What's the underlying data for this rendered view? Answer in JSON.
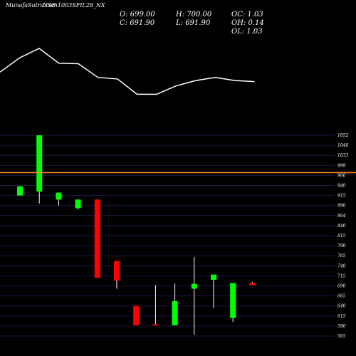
{
  "header": {
    "title": "MunafaSutra.com",
    "symbol": "NSE 1003SFIL28_NX"
  },
  "ohlc": {
    "open": "O: 699.00",
    "high": "H: 700.00",
    "close": "C: 691.90",
    "low": "L: 691.90",
    "oc": "OC: 1.03",
    "oh": "OH: 0.14",
    "ol": "OL: 1.03"
  },
  "colors": {
    "background": "#000000",
    "bullish": "#00ff00",
    "bearish": "#ff0000",
    "grid": "#1a1a44",
    "reference_line": "#ff8c1a",
    "volume_line": "#ffffff"
  },
  "chart_data": {
    "type": "candlestick",
    "y_ticks": [
      1052,
      1046,
      1033,
      999,
      966,
      940,
      915,
      890,
      864,
      840,
      815,
      790,
      765,
      740,
      715,
      690,
      665,
      640,
      615,
      590,
      565
    ],
    "ylim": [
      565,
      1052
    ],
    "reference_value": 966,
    "candles": [
      {
        "open": 915,
        "close": 938,
        "high": 938,
        "low": 915
      },
      {
        "open": 925,
        "close": 1052,
        "high": 1052,
        "low": 895
      },
      {
        "open": 905,
        "close": 922,
        "high": 922,
        "low": 890
      },
      {
        "open": 883,
        "close": 905,
        "high": 905,
        "low": 880
      },
      {
        "open": 905,
        "close": 710,
        "high": 905,
        "low": 710
      },
      {
        "open": 752,
        "close": 703,
        "high": 752,
        "low": 683
      },
      {
        "open": 640,
        "close": 592,
        "high": 640,
        "low": 592
      },
      {
        "open": 595,
        "close": 592,
        "high": 692,
        "low": 592
      },
      {
        "open": 592,
        "close": 652,
        "high": 696,
        "low": 592
      },
      {
        "open": 683,
        "close": 695,
        "high": 762,
        "low": 568
      },
      {
        "open": 705,
        "close": 718,
        "high": 718,
        "low": 635
      },
      {
        "open": 610,
        "close": 697,
        "high": 697,
        "low": 600
      },
      {
        "open": 697,
        "close": 691.9,
        "high": 700,
        "low": 691.9
      }
    ],
    "volume_profile": [
      0.55,
      0.82,
      1.0,
      0.72,
      0.71,
      0.45,
      0.42,
      0.13,
      0.13,
      0.29,
      0.39,
      0.45,
      0.39,
      0.37
    ]
  }
}
